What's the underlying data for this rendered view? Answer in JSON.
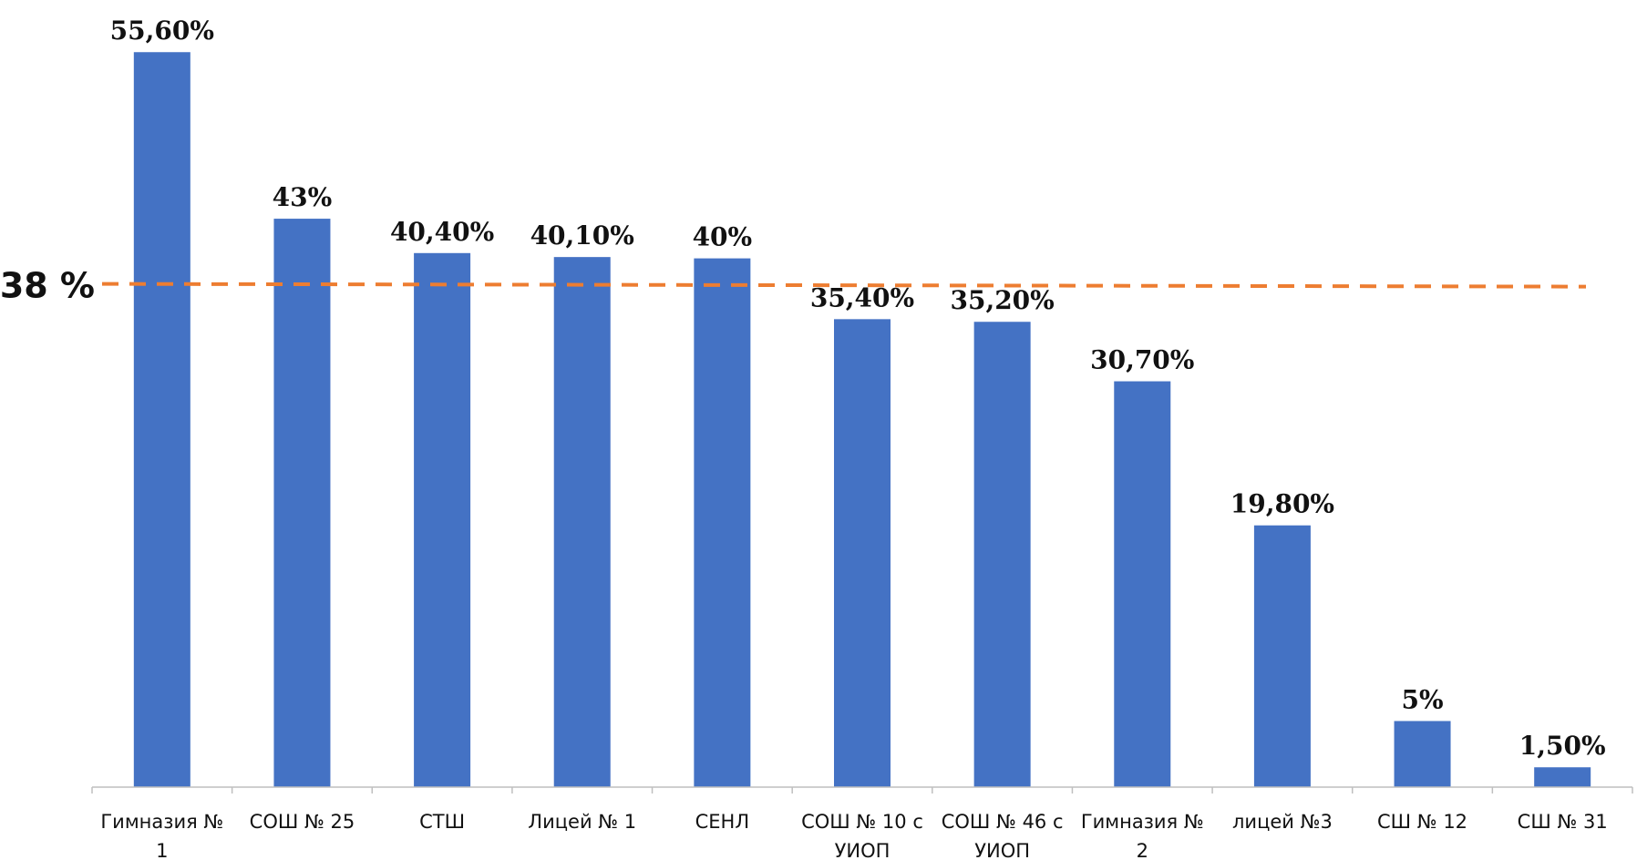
{
  "chart_data": {
    "type": "bar",
    "categories": [
      [
        "Гимназия №",
        "1"
      ],
      [
        "СОШ № 25"
      ],
      [
        "СТШ"
      ],
      [
        "Лицей № 1"
      ],
      [
        "СЕНЛ"
      ],
      [
        "СОШ № 10 с",
        "УИОП"
      ],
      [
        "СОШ № 46 с",
        "УИОП"
      ],
      [
        "Гимназия №",
        "2"
      ],
      [
        "лицей №3"
      ],
      [
        "СШ № 12"
      ],
      [
        "СШ № 31"
      ]
    ],
    "values": [
      55.6,
      43,
      40.4,
      40.1,
      40,
      35.4,
      35.2,
      30.7,
      19.8,
      5,
      1.5
    ],
    "value_labels": [
      "55,60%",
      "43%",
      "40,40%",
      "40,10%",
      "40%",
      "35,40%",
      "35,20%",
      "30,70%",
      "19,80%",
      "5%",
      "1,50%"
    ],
    "reference_line": {
      "value": 38,
      "label": "38 %",
      "color": "#ED7D31",
      "style": "dashed"
    },
    "ylim": [
      0,
      56
    ],
    "bar_color": "#4472C4",
    "grid": false,
    "legend": "none"
  }
}
